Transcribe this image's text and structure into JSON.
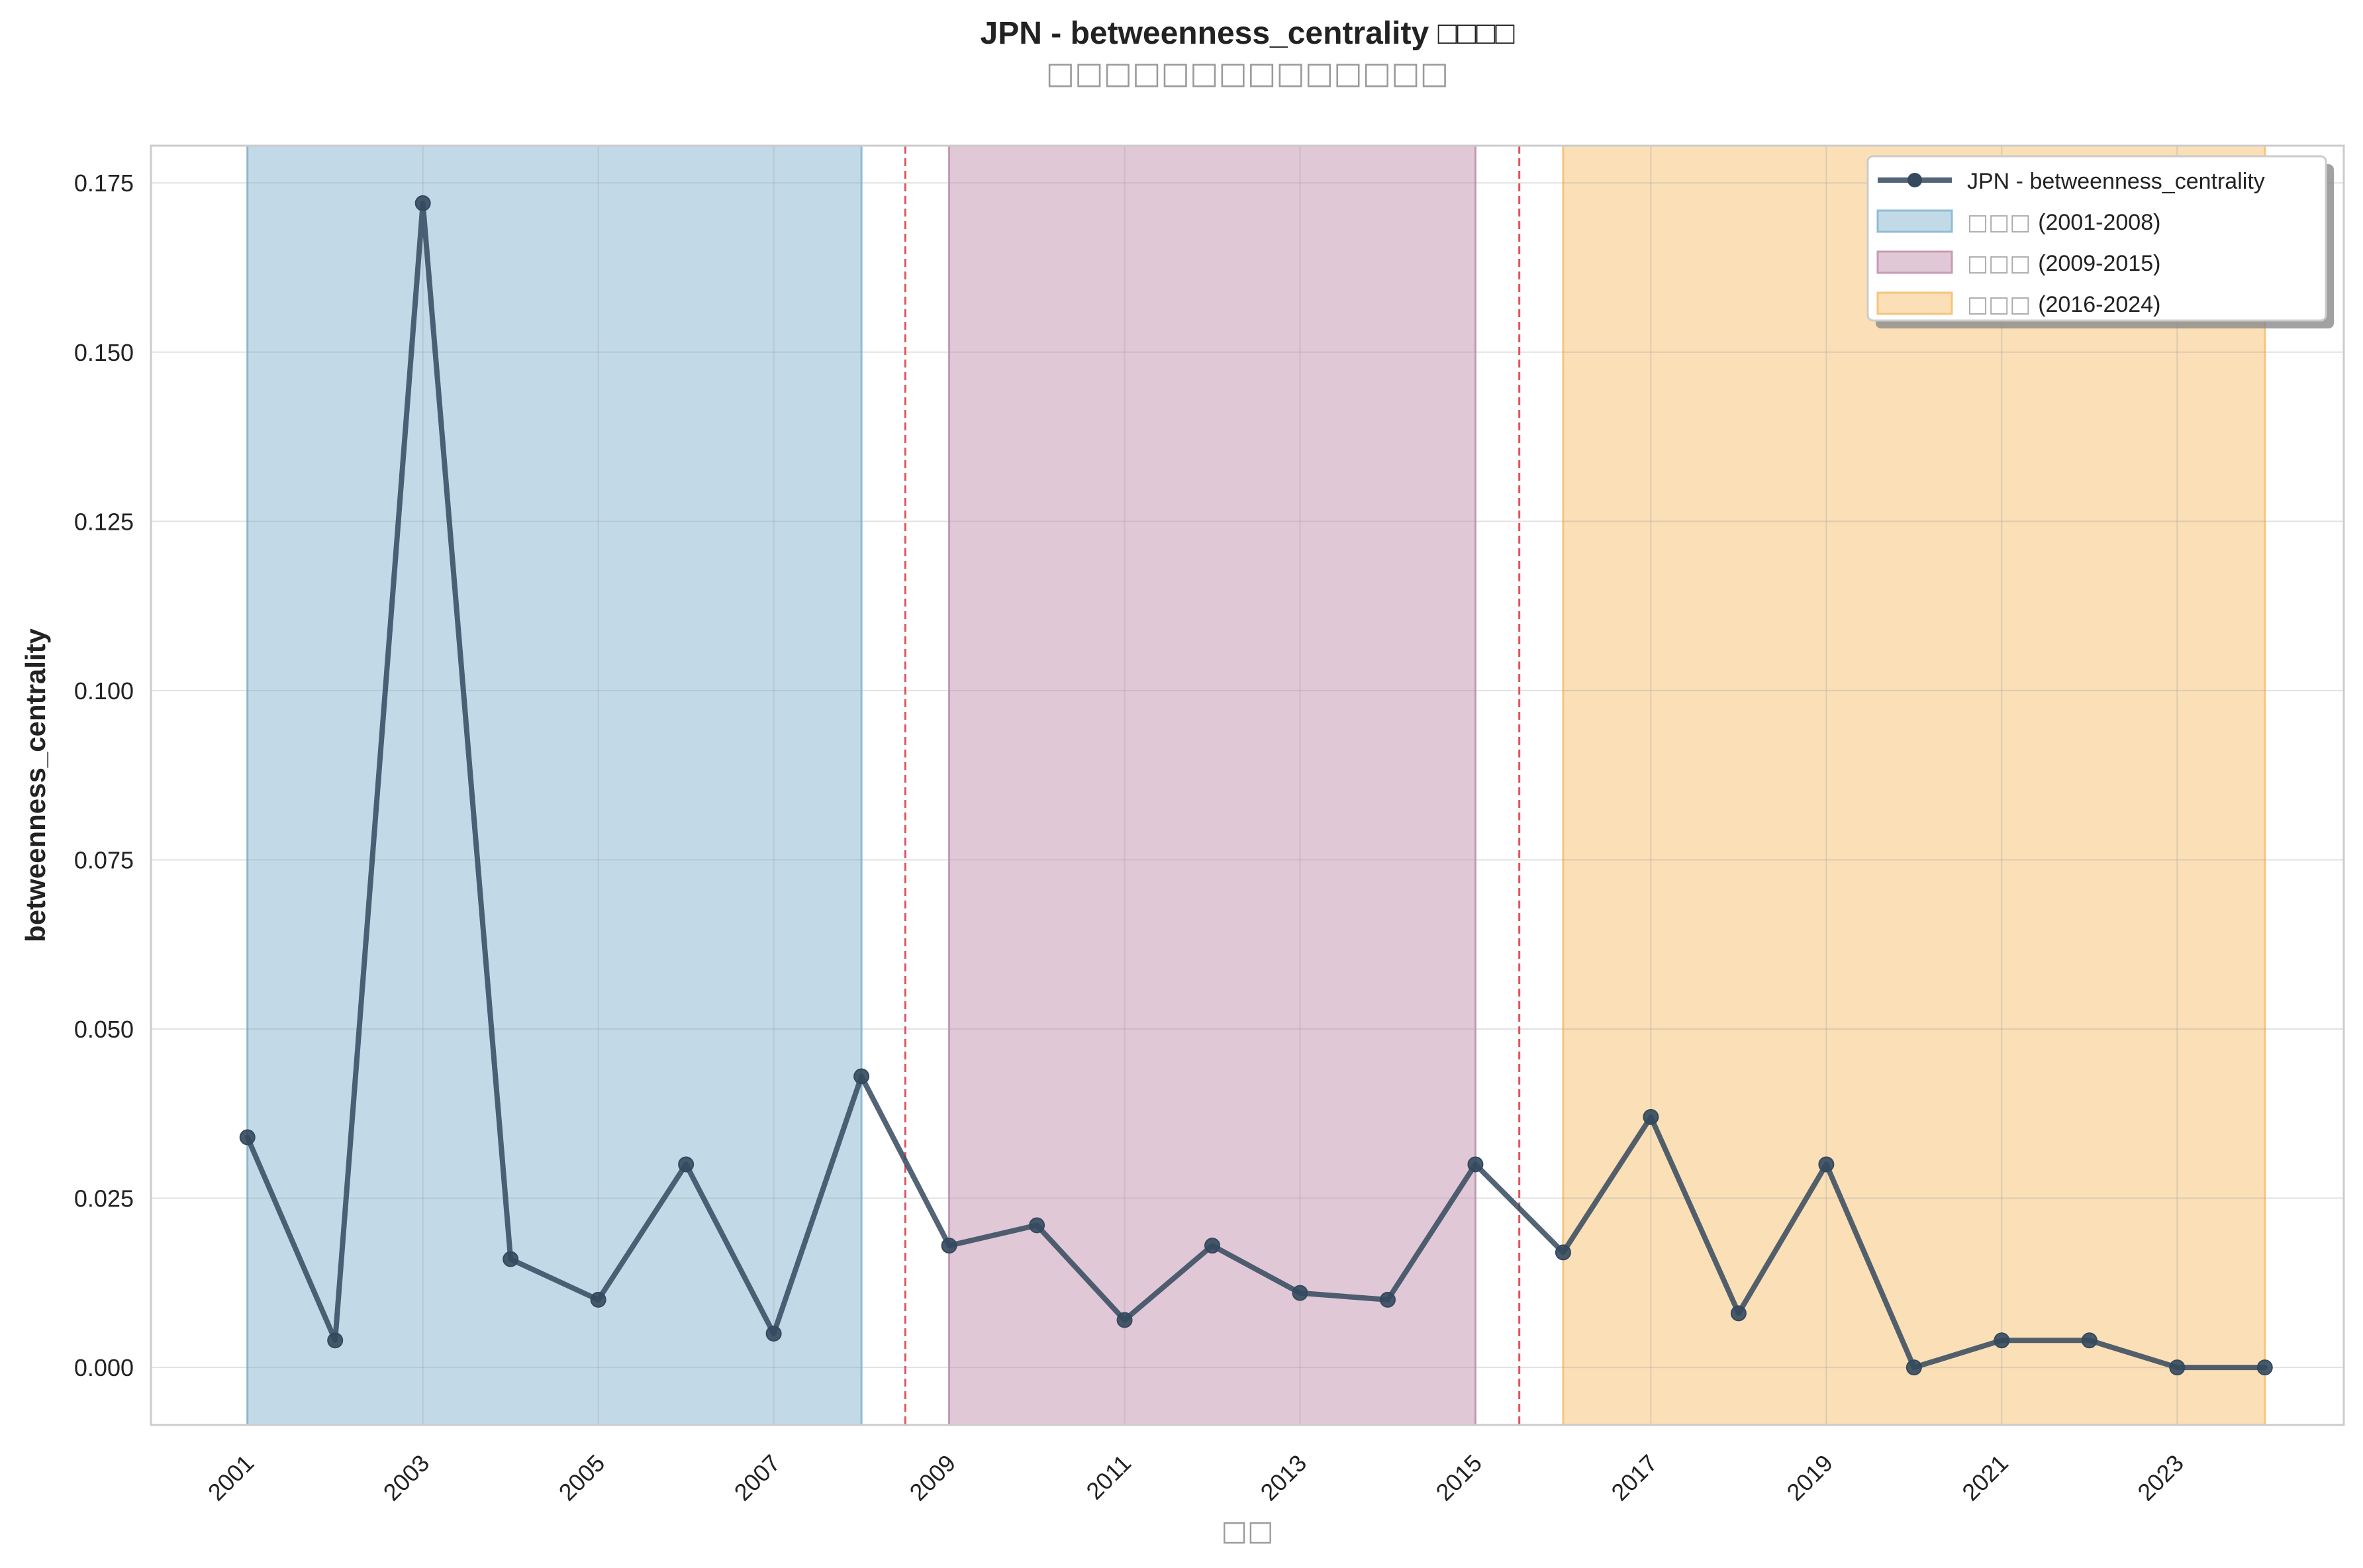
{
  "chart_data": {
    "type": "line",
    "title": "JPN - betweenness_centrality □□□□",
    "subtitle": "□□□□□□□□□□□□□□",
    "xlabel": "□□",
    "ylabel": "betweenness_centrality",
    "xlim": [
      1999.9,
      2024.9
    ],
    "ylim": [
      -0.0085,
      0.1805
    ],
    "x_ticks": [
      2001,
      2003,
      2005,
      2007,
      2009,
      2011,
      2013,
      2015,
      2017,
      2019,
      2021,
      2023
    ],
    "y_ticks": [
      0.0,
      0.025,
      0.05,
      0.075,
      0.1,
      0.125,
      0.15,
      0.175
    ],
    "y_tick_labels": [
      "0.000",
      "0.025",
      "0.050",
      "0.075",
      "0.100",
      "0.125",
      "0.150",
      "0.175"
    ],
    "grid": true,
    "legend_position": "top-right",
    "series": [
      {
        "name": "JPN - betweenness_centrality",
        "color": "#34495e",
        "x": [
          2001,
          2002,
          2003,
          2004,
          2005,
          2006,
          2007,
          2008,
          2009,
          2010,
          2011,
          2012,
          2013,
          2014,
          2015,
          2016,
          2017,
          2018,
          2019,
          2020,
          2021,
          2022,
          2023,
          2024
        ],
        "y": [
          0.034,
          0.004,
          0.172,
          0.016,
          0.01,
          0.03,
          0.005,
          0.043,
          0.018,
          0.021,
          0.007,
          0.018,
          0.011,
          0.01,
          0.03,
          0.017,
          0.037,
          0.008,
          0.03,
          0.0,
          0.004,
          0.004,
          0.0,
          0.0
        ]
      }
    ],
    "periods": [
      {
        "label": "□□□ (2001-2008)",
        "start": 2001,
        "end": 2008,
        "color": "#8fbcd4"
      },
      {
        "label": "□□□ (2009-2015)",
        "start": 2009,
        "end": 2015,
        "color": "#c99ab4"
      },
      {
        "label": "□□□ (2016-2024)",
        "start": 2016,
        "end": 2024,
        "color": "#f5c57c"
      }
    ],
    "boundaries": [
      2008.5,
      2015.5
    ],
    "boundary_color": "#d9434e"
  }
}
